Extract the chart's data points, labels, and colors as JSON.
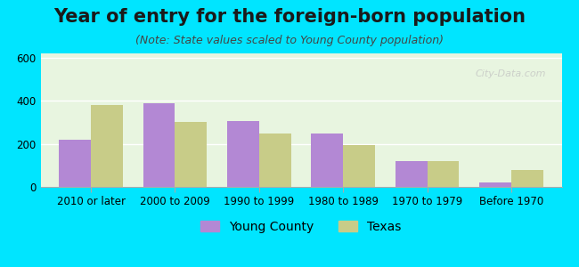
{
  "title": "Year of entry for the foreign-born population",
  "subtitle": "(Note: State values scaled to Young County population)",
  "categories": [
    "2010 or later",
    "2000 to 2009",
    "1990 to 1999",
    "1980 to 1989",
    "1970 to 1979",
    "Before 1970"
  ],
  "young_county": [
    220,
    390,
    305,
    248,
    118,
    22
  ],
  "texas": [
    380,
    300,
    248,
    193,
    120,
    78
  ],
  "young_county_color": "#b388d4",
  "texas_color": "#c8cc88",
  "background_outer": "#00e5ff",
  "background_inner_top": "#e8f5e9",
  "background_inner_bottom": "#f0f8e8",
  "ylim": [
    0,
    620
  ],
  "yticks": [
    0,
    200,
    400,
    600
  ],
  "bar_width": 0.38,
  "legend_young": "Young County",
  "legend_texas": "Texas",
  "title_fontsize": 15,
  "subtitle_fontsize": 9,
  "tick_fontsize": 8.5,
  "legend_fontsize": 10
}
